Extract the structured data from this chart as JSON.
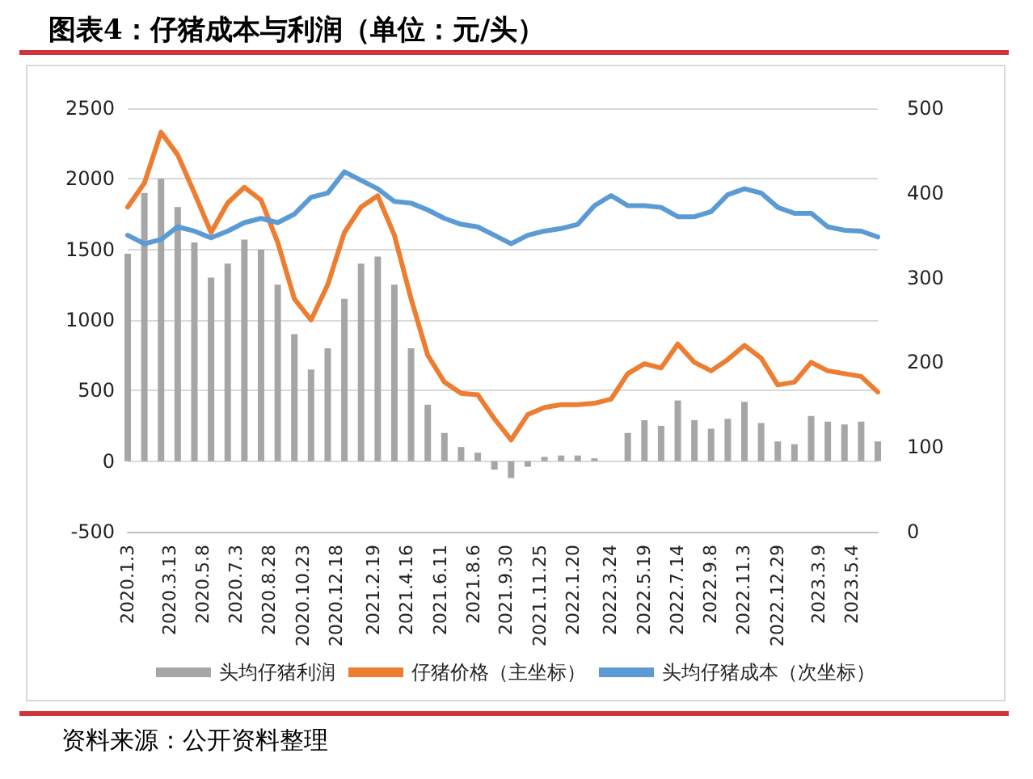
{
  "chart_data": {
    "type": "bar",
    "title": "图表4：仔猪成本与利润（单位：元/头）",
    "x": [
      "2020-01-03",
      "2020-01-31",
      "2020-02-28",
      "2020-03-27",
      "2020-04-24",
      "2020-05-22",
      "2020-06-19",
      "2020-07-17",
      "2020-08-14",
      "2020-09-11",
      "2020-10-09",
      "2020-11-06",
      "2020-12-04",
      "2021-01-01",
      "2021-01-29",
      "2021-02-26",
      "2021-03-26",
      "2021-04-23",
      "2021-05-21",
      "2021-06-18",
      "2021-07-16",
      "2021-08-13",
      "2021-09-10",
      "2021-10-08",
      "2021-11-05",
      "2021-12-03",
      "2021-12-31",
      "2022-01-28",
      "2022-02-25",
      "2022-03-25",
      "2022-04-22",
      "2022-05-20",
      "2022-06-17",
      "2022-07-15",
      "2022-08-12",
      "2022-09-09",
      "2022-10-07",
      "2022-11-04",
      "2022-12-02",
      "2022-12-30",
      "2023-01-27",
      "2023-02-24",
      "2023-03-24",
      "2023-04-21",
      "2023-05-19",
      "2023-06-16"
    ],
    "series": [
      {
        "name": "头均仔猪利润",
        "color": "#a6a6a6",
        "values": [
          1470,
          1900,
          2000,
          1800,
          1550,
          1300,
          1400,
          1570,
          1500,
          1250,
          900,
          650,
          800,
          1150,
          1400,
          1450,
          1250,
          800,
          400,
          200,
          100,
          60,
          -60,
          -120,
          -40,
          30,
          40,
          40,
          20,
          null,
          200,
          290,
          250,
          430,
          290,
          230,
          300,
          420,
          270,
          140,
          120,
          320,
          280,
          260,
          280,
          140
        ]
      },
      {
        "name": "仔猪价格（主坐标）",
        "type": "line",
        "color": "#ed7d31",
        "values": [
          1800,
          1970,
          2330,
          2170,
          1900,
          1620,
          1830,
          1940,
          1850,
          1550,
          1150,
          1000,
          1250,
          1620,
          1800,
          1880,
          1600,
          1150,
          750,
          560,
          480,
          470,
          300,
          150,
          330,
          380,
          400,
          400,
          410,
          440,
          620,
          690,
          660,
          830,
          700,
          640,
          720,
          820,
          730,
          540,
          560,
          700,
          640,
          620,
          600,
          490
        ]
      },
      {
        "name": "头均仔猪成本（次坐标）",
        "type": "line",
        "axis": "y2",
        "color": "#5b9bd5",
        "values": [
          350,
          340,
          345,
          360,
          355,
          347,
          355,
          365,
          370,
          365,
          375,
          395,
          400,
          425,
          415,
          405,
          390,
          388,
          380,
          370,
          363,
          360,
          350,
          340,
          350,
          355,
          358,
          363,
          385,
          397,
          385,
          385,
          383,
          372,
          372,
          378,
          398,
          405,
          400,
          383,
          376,
          376,
          360,
          356,
          355,
          348
        ]
      }
    ],
    "xlim": [
      "2020-01-03",
      "2023-06-16"
    ],
    "xticks": [
      {
        "value": "2020-01-03",
        "label": "2020.1.3"
      },
      {
        "value": "2020-03-13",
        "label": "2020.3.13"
      },
      {
        "value": "2020-05-08",
        "label": "2020.5.8"
      },
      {
        "value": "2020-07-03",
        "label": "2020.7.3"
      },
      {
        "value": "2020-08-28",
        "label": "2020.8.28"
      },
      {
        "value": "2020-10-23",
        "label": "2020.10.23"
      },
      {
        "value": "2020-12-18",
        "label": "2020.12.18"
      },
      {
        "value": "2021-02-19",
        "label": "2021.2.19"
      },
      {
        "value": "2021-04-16",
        "label": "2021.4.16"
      },
      {
        "value": "2021-06-11",
        "label": "2021.6.11"
      },
      {
        "value": "2021-08-06",
        "label": "2021.8.6"
      },
      {
        "value": "2021-09-30",
        "label": "2021.9.30"
      },
      {
        "value": "2021-11-25",
        "label": "2021.11.25"
      },
      {
        "value": "2022-01-20",
        "label": "2022.1.20"
      },
      {
        "value": "2022-03-24",
        "label": "2022.3.24"
      },
      {
        "value": "2022-05-19",
        "label": "2022.5.19"
      },
      {
        "value": "2022-07-14",
        "label": "2022.7.14"
      },
      {
        "value": "2022-09-08",
        "label": "2022.9.8"
      },
      {
        "value": "2022-11-03",
        "label": "2022.11.3"
      },
      {
        "value": "2022-12-29",
        "label": "2022.12.29"
      },
      {
        "value": "2023-03-09",
        "label": "2023.3.9"
      },
      {
        "value": "2023-05-04",
        "label": "2023.5.4"
      }
    ],
    "ylim": [
      -500,
      2500
    ],
    "yticks": [
      -500,
      0,
      500,
      1000,
      1500,
      2000,
      2500
    ],
    "y2lim": [
      0,
      500
    ],
    "y2ticks": [
      0,
      100,
      200,
      300,
      400,
      500
    ],
    "grid": "y",
    "legend": "bottom",
    "marker": "none",
    "line_style": "solid",
    "annotations": [
      "资料来源：公开资料整理"
    ]
  }
}
